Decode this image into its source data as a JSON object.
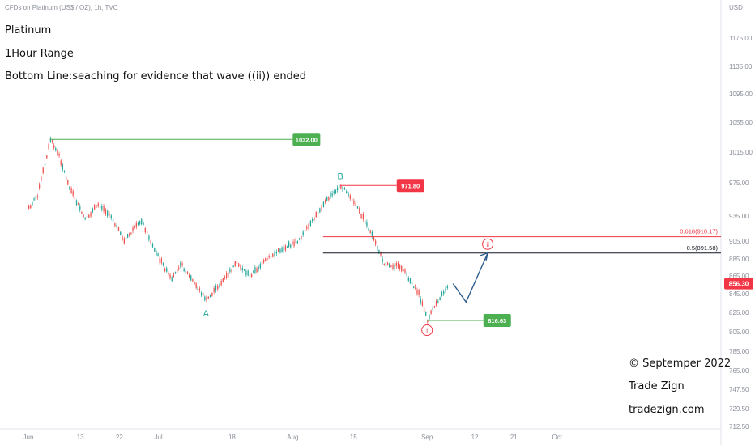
{
  "source_line": "CFDs on Platinum (US$ / OZ), 1h, TVC",
  "header": {
    "title": "Platinum",
    "range": "1Hour Range",
    "bottom_line": "Bottom Line:seaching for evidence that wave ((ii)) ended"
  },
  "footer": {
    "copyright": "© Septemper 2022",
    "brand": "Trade Zign",
    "site": "tradezign.com"
  },
  "chart_data": {
    "type": "line",
    "currency": "USD",
    "y_ticks": [
      "1175.00",
      "1135.00",
      "1095.00",
      "1055.00",
      "1015.00",
      "975.00",
      "935.00",
      "905.00",
      "885.00",
      "865.00",
      "845.00",
      "825.00",
      "805.00",
      "785.00",
      "765.00",
      "747.50",
      "729.50",
      "712.50"
    ],
    "x_ticks": [
      "Jun",
      "13",
      "22",
      "Jul",
      "18",
      "Aug",
      "15",
      "Sep",
      "12",
      "21",
      "Oct"
    ],
    "price_path": [
      {
        "x": "Jun 1",
        "y": 945
      },
      {
        "x": "Jun 3",
        "y": 960
      },
      {
        "x": "Jun 6",
        "y": 1032
      },
      {
        "x": "Jun 8",
        "y": 1010
      },
      {
        "x": "Jun 10",
        "y": 975
      },
      {
        "x": "Jun 14",
        "y": 930
      },
      {
        "x": "Jun 17",
        "y": 950
      },
      {
        "x": "Jun 20",
        "y": 935
      },
      {
        "x": "Jun 23",
        "y": 905
      },
      {
        "x": "Jun 27",
        "y": 930
      },
      {
        "x": "Jun 30",
        "y": 895
      },
      {
        "x": "Jul 4",
        "y": 860
      },
      {
        "x": "Jul 6",
        "y": 880
      },
      {
        "x": "Jul 8",
        "y": 865
      },
      {
        "x": "Jul 12",
        "y": 838
      },
      {
        "x": "Jul 15",
        "y": 855
      },
      {
        "x": "Jul 19",
        "y": 880
      },
      {
        "x": "Jul 22",
        "y": 865
      },
      {
        "x": "Jul 26",
        "y": 885
      },
      {
        "x": "Jul 29",
        "y": 895
      },
      {
        "x": "Aug 2",
        "y": 905
      },
      {
        "x": "Aug 5",
        "y": 925
      },
      {
        "x": "Aug 8",
        "y": 950
      },
      {
        "x": "Aug 12",
        "y": 971.8
      },
      {
        "x": "Aug 15",
        "y": 952
      },
      {
        "x": "Aug 18",
        "y": 925
      },
      {
        "x": "Aug 22",
        "y": 880
      },
      {
        "x": "Aug 26",
        "y": 875
      },
      {
        "x": "Aug 30",
        "y": 845
      },
      {
        "x": "Sep 1",
        "y": 816.63
      },
      {
        "x": "Sep 3",
        "y": 835
      },
      {
        "x": "Sep 6",
        "y": 856.3
      }
    ],
    "projection": [
      {
        "x": "Sep 7",
        "y": 856.3
      },
      {
        "x": "Sep 10",
        "y": 836
      },
      {
        "x": "Sep 15",
        "y": 891.58
      }
    ],
    "levels": [
      {
        "label": "1032.00",
        "value": 1032.0,
        "color": "#4caf50"
      },
      {
        "label": "971.80",
        "value": 971.8,
        "color": "#f23645"
      },
      {
        "label": "816.63",
        "value": 816.63,
        "color": "#4caf50"
      }
    ],
    "fib_levels": [
      {
        "label": "0.618(910.17)",
        "value": 910.17,
        "color": "#f23645"
      },
      {
        "label": "0.5(891.58)",
        "value": 891.58,
        "color": "#131722"
      }
    ],
    "last_price": {
      "label": "856.30",
      "value": 856.3,
      "color": "#f23645"
    },
    "wave_labels": [
      {
        "text": "A",
        "x": "Jul 12",
        "y": 838,
        "color": "#26a69a"
      },
      {
        "text": "B",
        "x": "Aug 12",
        "y": 971.8,
        "color": "#26a69a"
      },
      {
        "text": "i",
        "x": "Sep 1",
        "y": 816.63,
        "color": "#f23645"
      },
      {
        "text": "ii",
        "x": "Sep 15",
        "y": 891.58,
        "color": "#f23645"
      }
    ]
  }
}
